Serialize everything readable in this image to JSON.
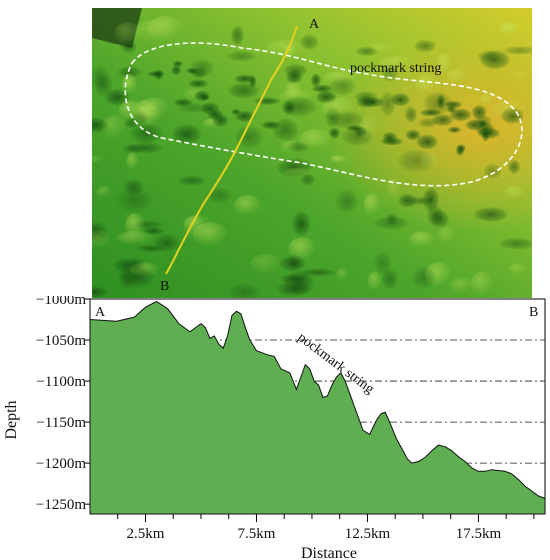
{
  "map": {
    "label_a": "A",
    "label_b": "B",
    "pockmark_label": "pockmark string",
    "colors": {
      "relief_light": "#d8cc2a",
      "relief_mid": "#6fbe2e",
      "relief_dark": "#1f7a1a",
      "profile_line": "#e8d21a",
      "outline": "#ffffff"
    }
  },
  "chart_data": {
    "type": "area",
    "xlabel": "Distance",
    "ylabel": "Depth",
    "xlim": [
      0,
      20.5
    ],
    "ylim": [
      -1262,
      -1000
    ],
    "y_ticks": [
      -1000,
      -1050,
      -1100,
      -1150,
      -1200,
      -1250
    ],
    "y_tick_labels": [
      "−1000m",
      "−1050m",
      "−1100m",
      "−1150m",
      "−1200m",
      "−1250m"
    ],
    "x_ticks": [
      2.5,
      7.5,
      12.5,
      17.5
    ],
    "x_tick_labels": [
      "2.5km",
      "7.5km",
      "12.5km",
      "17.5km"
    ],
    "grid": "dash-dot horizontal lines at -1050, -1100, -1150, -1200, -1250",
    "end_label_left": "A",
    "end_label_right": "B",
    "annotation": "pockmark string",
    "fill_color": "#5fae52",
    "x": [
      0,
      0.5,
      1.2,
      2.0,
      2.5,
      3.0,
      3.5,
      4.0,
      4.5,
      5.0,
      5.2,
      5.4,
      5.6,
      5.8,
      6.0,
      6.2,
      6.4,
      6.6,
      6.8,
      7.0,
      7.2,
      7.5,
      8.0,
      8.3,
      8.6,
      9.0,
      9.3,
      9.5,
      9.7,
      9.9,
      10.1,
      10.3,
      10.5,
      10.7,
      10.9,
      11.1,
      11.3,
      11.5,
      11.7,
      11.9,
      12.1,
      12.3,
      12.6,
      12.9,
      13.1,
      13.3,
      13.5,
      13.8,
      14.1,
      14.3,
      14.5,
      14.8,
      15.1,
      15.4,
      15.7,
      16.0,
      16.3,
      16.6,
      16.9,
      17.2,
      17.5,
      17.8,
      18.1,
      18.4,
      18.7,
      19.0,
      19.3,
      19.6,
      19.9,
      20.2,
      20.5
    ],
    "y": [
      -1025,
      -1026,
      -1027,
      -1022,
      -1010,
      -1003,
      -1012,
      -1030,
      -1040,
      -1030,
      -1035,
      -1048,
      -1045,
      -1055,
      -1060,
      -1045,
      -1020,
      -1015,
      -1018,
      -1035,
      -1050,
      -1063,
      -1068,
      -1070,
      -1085,
      -1090,
      -1110,
      -1095,
      -1080,
      -1085,
      -1100,
      -1105,
      -1120,
      -1118,
      -1105,
      -1095,
      -1090,
      -1100,
      -1115,
      -1130,
      -1145,
      -1160,
      -1165,
      -1148,
      -1140,
      -1138,
      -1150,
      -1170,
      -1185,
      -1195,
      -1200,
      -1198,
      -1193,
      -1185,
      -1178,
      -1180,
      -1185,
      -1192,
      -1198,
      -1206,
      -1210,
      -1210,
      -1208,
      -1209,
      -1210,
      -1213,
      -1220,
      -1228,
      -1234,
      -1240,
      -1243
    ]
  }
}
